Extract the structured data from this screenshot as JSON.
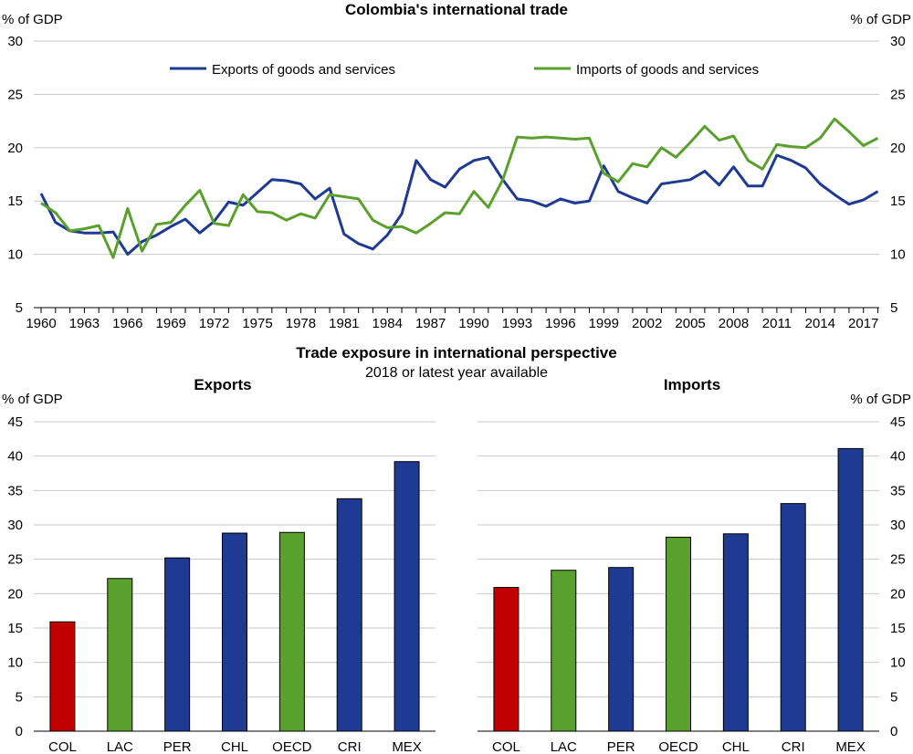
{
  "chart_data": [
    {
      "type": "line",
      "title": "Colombia's international trade",
      "ylabel_left": "% of GDP",
      "ylabel_right": "% of GDP",
      "ylim": [
        5,
        30
      ],
      "yticks": [
        5,
        10,
        15,
        20,
        25,
        30
      ],
      "xtick_labels": [
        "1960",
        "1963",
        "1966",
        "1969",
        "1972",
        "1975",
        "1978",
        "1981",
        "1984",
        "1987",
        "1990",
        "1993",
        "1996",
        "1999",
        "2002",
        "2005",
        "2008",
        "2011",
        "2014",
        "2017"
      ],
      "x": [
        1960,
        1961,
        1962,
        1963,
        1964,
        1965,
        1966,
        1967,
        1968,
        1969,
        1970,
        1971,
        1972,
        1973,
        1974,
        1975,
        1976,
        1977,
        1978,
        1979,
        1980,
        1981,
        1982,
        1983,
        1984,
        1985,
        1986,
        1987,
        1988,
        1989,
        1990,
        1991,
        1992,
        1993,
        1994,
        1995,
        1996,
        1997,
        1998,
        1999,
        2000,
        2001,
        2002,
        2003,
        2004,
        2005,
        2006,
        2007,
        2008,
        2009,
        2010,
        2011,
        2012,
        2013,
        2014,
        2015,
        2016,
        2017,
        2018
      ],
      "legend_position": "top",
      "series": [
        {
          "name": "Exports of goods and services",
          "color": "#1f3a93",
          "values": [
            15.7,
            13.0,
            12.2,
            12.0,
            12.0,
            12.1,
            10.0,
            11.2,
            11.8,
            12.6,
            13.3,
            12.0,
            13.1,
            14.9,
            14.6,
            15.8,
            17.0,
            16.9,
            16.6,
            15.2,
            16.2,
            11.9,
            11.0,
            10.5,
            11.8,
            13.8,
            18.8,
            17.0,
            16.3,
            18.0,
            18.8,
            19.1,
            17.0,
            15.2,
            15.0,
            14.5,
            15.2,
            14.8,
            15.0,
            18.3,
            15.9,
            15.3,
            14.8,
            16.6,
            16.8,
            17.0,
            17.8,
            16.5,
            18.2,
            16.4,
            16.4,
            19.3,
            18.8,
            18.1,
            16.6,
            15.6,
            14.7,
            15.1,
            15.9
          ]
        },
        {
          "name": "Imports of goods and services",
          "color": "#5aa02c",
          "values": [
            14.8,
            13.9,
            12.2,
            12.4,
            12.7,
            9.7,
            14.3,
            10.3,
            12.8,
            13.0,
            14.6,
            16.0,
            12.9,
            12.7,
            15.6,
            14.0,
            13.9,
            13.2,
            13.8,
            13.4,
            15.6,
            15.4,
            15.2,
            13.2,
            12.5,
            12.6,
            12.0,
            12.9,
            13.9,
            13.8,
            15.9,
            14.4,
            17.0,
            21.0,
            20.9,
            21.0,
            20.9,
            20.8,
            20.9,
            17.6,
            16.8,
            18.5,
            18.2,
            20.0,
            19.1,
            20.5,
            22.0,
            20.7,
            21.1,
            18.8,
            18.0,
            20.3,
            20.1,
            20.0,
            20.9,
            22.7,
            21.5,
            20.2,
            20.9
          ]
        }
      ]
    },
    {
      "type": "bar",
      "title": "Exports",
      "ylabel": "% of GDP",
      "ylim": [
        0,
        45
      ],
      "yticks": [
        0,
        5,
        10,
        15,
        20,
        25,
        30,
        35,
        40,
        45
      ],
      "categories": [
        "COL",
        "LAC",
        "PER",
        "CHL",
        "OECD",
        "CRI",
        "MEX"
      ],
      "values": [
        15.9,
        22.2,
        25.2,
        28.8,
        28.9,
        33.8,
        39.2
      ],
      "colors": [
        "#c00000",
        "#5aa02c",
        "#1f3a93",
        "#1f3a93",
        "#5aa02c",
        "#1f3a93",
        "#1f3a93"
      ]
    },
    {
      "type": "bar",
      "title": "Imports",
      "ylabel": "% of GDP",
      "ylim": [
        0,
        45
      ],
      "yticks": [
        0,
        5,
        10,
        15,
        20,
        25,
        30,
        35,
        40,
        45
      ],
      "categories": [
        "COL",
        "LAC",
        "PER",
        "OECD",
        "CHL",
        "CRI",
        "MEX"
      ],
      "values": [
        20.9,
        23.4,
        23.8,
        28.2,
        28.7,
        33.1,
        41.1
      ],
      "colors": [
        "#c00000",
        "#5aa02c",
        "#1f3a93",
        "#5aa02c",
        "#1f3a93",
        "#1f3a93",
        "#1f3a93"
      ]
    }
  ],
  "panel2": {
    "title": "Trade exposure in international perspective",
    "subtitle": "2018 or latest year available"
  },
  "colors": {
    "grid": "#c8c8c8",
    "axis": "#000000"
  }
}
